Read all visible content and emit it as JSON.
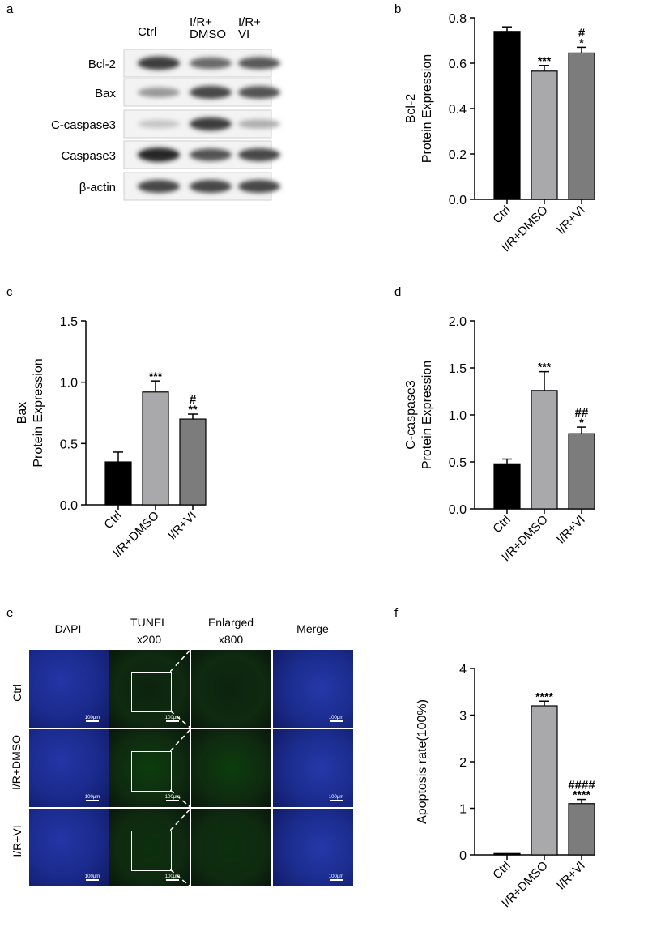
{
  "panel_letters": {
    "a": "a",
    "b": "b",
    "c": "c",
    "d": "d",
    "e": "e",
    "f": "f"
  },
  "blot": {
    "columns": [
      "Ctrl",
      "I/R+ DMSO",
      "I/R+ VI"
    ],
    "column_lines": [
      [
        "Ctrl"
      ],
      [
        "I/R+",
        "DMSO"
      ],
      [
        "I/R+",
        "VI"
      ]
    ],
    "rows": [
      "Bcl-2",
      "Bax",
      "C-caspase3",
      "Caspase3",
      "β-actin"
    ],
    "band_intensity": [
      [
        0.85,
        0.65,
        0.72
      ],
      [
        0.45,
        0.8,
        0.75
      ],
      [
        0.25,
        0.85,
        0.35
      ],
      [
        0.95,
        0.75,
        0.8
      ],
      [
        0.8,
        0.8,
        0.8
      ]
    ]
  },
  "chart_data": [
    {
      "panel": "b",
      "type": "bar",
      "categories": [
        "Ctrl",
        "I/R+DMSO",
        "I/R+VI"
      ],
      "values": [
        0.74,
        0.565,
        0.645
      ],
      "errors": [
        0.02,
        0.025,
        0.025
      ],
      "annotations": [
        [
          ""
        ],
        [
          "***"
        ],
        [
          "#",
          "*"
        ]
      ],
      "ylabel": [
        "Bcl-2",
        "Protein Expression"
      ],
      "ylim": [
        0,
        0.8
      ],
      "yticks": [
        "0.0",
        "0.2",
        "0.4",
        "0.6",
        "0.8"
      ],
      "colors": [
        "#000000",
        "#a9a9ab",
        "#7c7c7c"
      ]
    },
    {
      "panel": "c",
      "type": "bar",
      "categories": [
        "Ctrl",
        "I/R+DMSO",
        "I/R+VI"
      ],
      "values": [
        0.35,
        0.92,
        0.7
      ],
      "errors": [
        0.08,
        0.09,
        0.04
      ],
      "annotations": [
        [
          ""
        ],
        [
          "***"
        ],
        [
          "#",
          "**"
        ]
      ],
      "ylabel": [
        "Bax",
        "Protein Expression"
      ],
      "ylim": [
        0,
        1.5
      ],
      "yticks": [
        "0.0",
        "0.5",
        "1.0",
        "1.5"
      ],
      "colors": [
        "#000000",
        "#a9a9ab",
        "#7c7c7c"
      ]
    },
    {
      "panel": "d",
      "type": "bar",
      "categories": [
        "Ctrl",
        "I/R+DMSO",
        "I/R+VI"
      ],
      "values": [
        0.48,
        1.26,
        0.8
      ],
      "errors": [
        0.05,
        0.2,
        0.07
      ],
      "annotations": [
        [
          ""
        ],
        [
          "***"
        ],
        [
          "##",
          "*"
        ]
      ],
      "ylabel": [
        "C-caspase3",
        "Protein Expression"
      ],
      "ylim": [
        0,
        2.0
      ],
      "yticks": [
        "0.0",
        "0.5",
        "1.0",
        "1.5",
        "2.0"
      ],
      "colors": [
        "#000000",
        "#a9a9ab",
        "#7c7c7c"
      ]
    },
    {
      "panel": "f",
      "type": "bar",
      "categories": [
        "Ctrl",
        "I/R+DMSO",
        "I/R+VI"
      ],
      "values": [
        0.03,
        3.2,
        1.1
      ],
      "errors": [
        0.0,
        0.1,
        0.09
      ],
      "annotations": [
        [
          ""
        ],
        [
          "****"
        ],
        [
          "####",
          "****"
        ]
      ],
      "ylabel": [
        "Apoptosis rate(100%)"
      ],
      "ylim": [
        0,
        4
      ],
      "yticks": [
        "0",
        "1",
        "2",
        "3",
        "4"
      ],
      "colors": [
        "#000000",
        "#a9a9ab",
        "#7c7c7c"
      ]
    }
  ],
  "microscopy": {
    "column_headers": [
      [
        "DAPI"
      ],
      [
        "TUNEL",
        "x200"
      ],
      [
        "Enlarged",
        "x800"
      ],
      [
        "Merge"
      ]
    ],
    "row_labels": [
      "Ctrl",
      "I/R+DMSO",
      "I/R+VI"
    ],
    "scale_bar": "100μm",
    "tile_colors": {
      "dapi": "#1a2a8c",
      "tunel": "#0f2a10",
      "merge": "#1b2c8e"
    },
    "tunel_signal": [
      0.05,
      0.35,
      0.2
    ]
  }
}
